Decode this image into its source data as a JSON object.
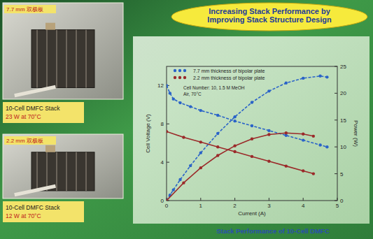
{
  "chart_data": {
    "type": "line",
    "title": "Increasing Stack Performance by Improving Stack Structure Design",
    "x_label": "Current (A)",
    "y_label": "Cell Voltage (V)",
    "y2_label": "Power (W)",
    "annotations": [
      "Cell Number: 10, 1.5 M MeOH",
      "Air, 70°C"
    ],
    "xlim": [
      0,
      5
    ],
    "xticks": [
      0,
      1,
      2,
      3,
      4,
      5
    ],
    "ylim": [
      0,
      14
    ],
    "yticks": [
      0,
      4,
      8,
      12
    ],
    "y2lim": [
      0,
      25
    ],
    "y2ticks": [
      0,
      5,
      10,
      15,
      20,
      25
    ],
    "legend": "top-left",
    "series": [
      {
        "name": "7.7 mm thickness of bipolar plate",
        "color": "#2a63c8",
        "marker": "circle",
        "line_style": "dashed",
        "x": [
          0,
          0.1,
          0.2,
          0.4,
          0.7,
          1.0,
          1.5,
          2.0,
          2.5,
          3.0,
          3.5,
          4.0,
          4.5,
          4.7
        ],
        "values": [
          12,
          11.2,
          10.6,
          10.2,
          9.8,
          9.4,
          8.9,
          8.3,
          7.8,
          7.3,
          6.8,
          6.3,
          5.8,
          5.6
        ]
      },
      {
        "name": "7.7 mm thickness of bipolar plate",
        "color": "#2a63c8",
        "marker": "circle",
        "line_style": "dashed",
        "axis": "y2",
        "x": [
          0,
          0.1,
          0.2,
          0.4,
          0.7,
          1.0,
          1.5,
          2.0,
          2.5,
          3.0,
          3.5,
          4.0,
          4.5,
          4.7
        ],
        "values": [
          0,
          1.0,
          2.0,
          3.9,
          6.5,
          8.9,
          12.5,
          15.6,
          18.3,
          20.4,
          21.9,
          22.8,
          23.2,
          23.0
        ]
      },
      {
        "name": "2.2 mm thickness of bipolar plate",
        "color": "#9b2a2a",
        "marker": "circle",
        "line_style": "solid",
        "x": [
          0,
          0.5,
          1.0,
          1.5,
          2.0,
          2.5,
          3.0,
          3.5,
          4.0,
          4.3
        ],
        "values": [
          7.2,
          6.6,
          6.1,
          5.6,
          5.1,
          4.6,
          4.1,
          3.6,
          3.1,
          2.8
        ]
      },
      {
        "name": "2.2 mm thickness of bipolar plate",
        "color": "#9b2a2a",
        "marker": "circle",
        "line_style": "solid",
        "axis": "y2",
        "x": [
          0,
          0.5,
          1.0,
          1.5,
          2.0,
          2.5,
          3.0,
          3.5,
          4.0,
          4.3
        ],
        "values": [
          0,
          3.3,
          6.1,
          8.4,
          10.2,
          11.5,
          12.3,
          12.6,
          12.4,
          12.0
        ]
      }
    ]
  },
  "panels": [
    {
      "label": "7.7 mm 双极板",
      "caption": "10-Cell DMFC Stack",
      "detail": "23 W at 70°C"
    },
    {
      "label": "2.2 mm 双极板",
      "caption": "10-Cell DMFC Stack",
      "detail": "12 W at 70°C"
    }
  ],
  "footer": "Stack Performance of 10-Cell DMFC"
}
